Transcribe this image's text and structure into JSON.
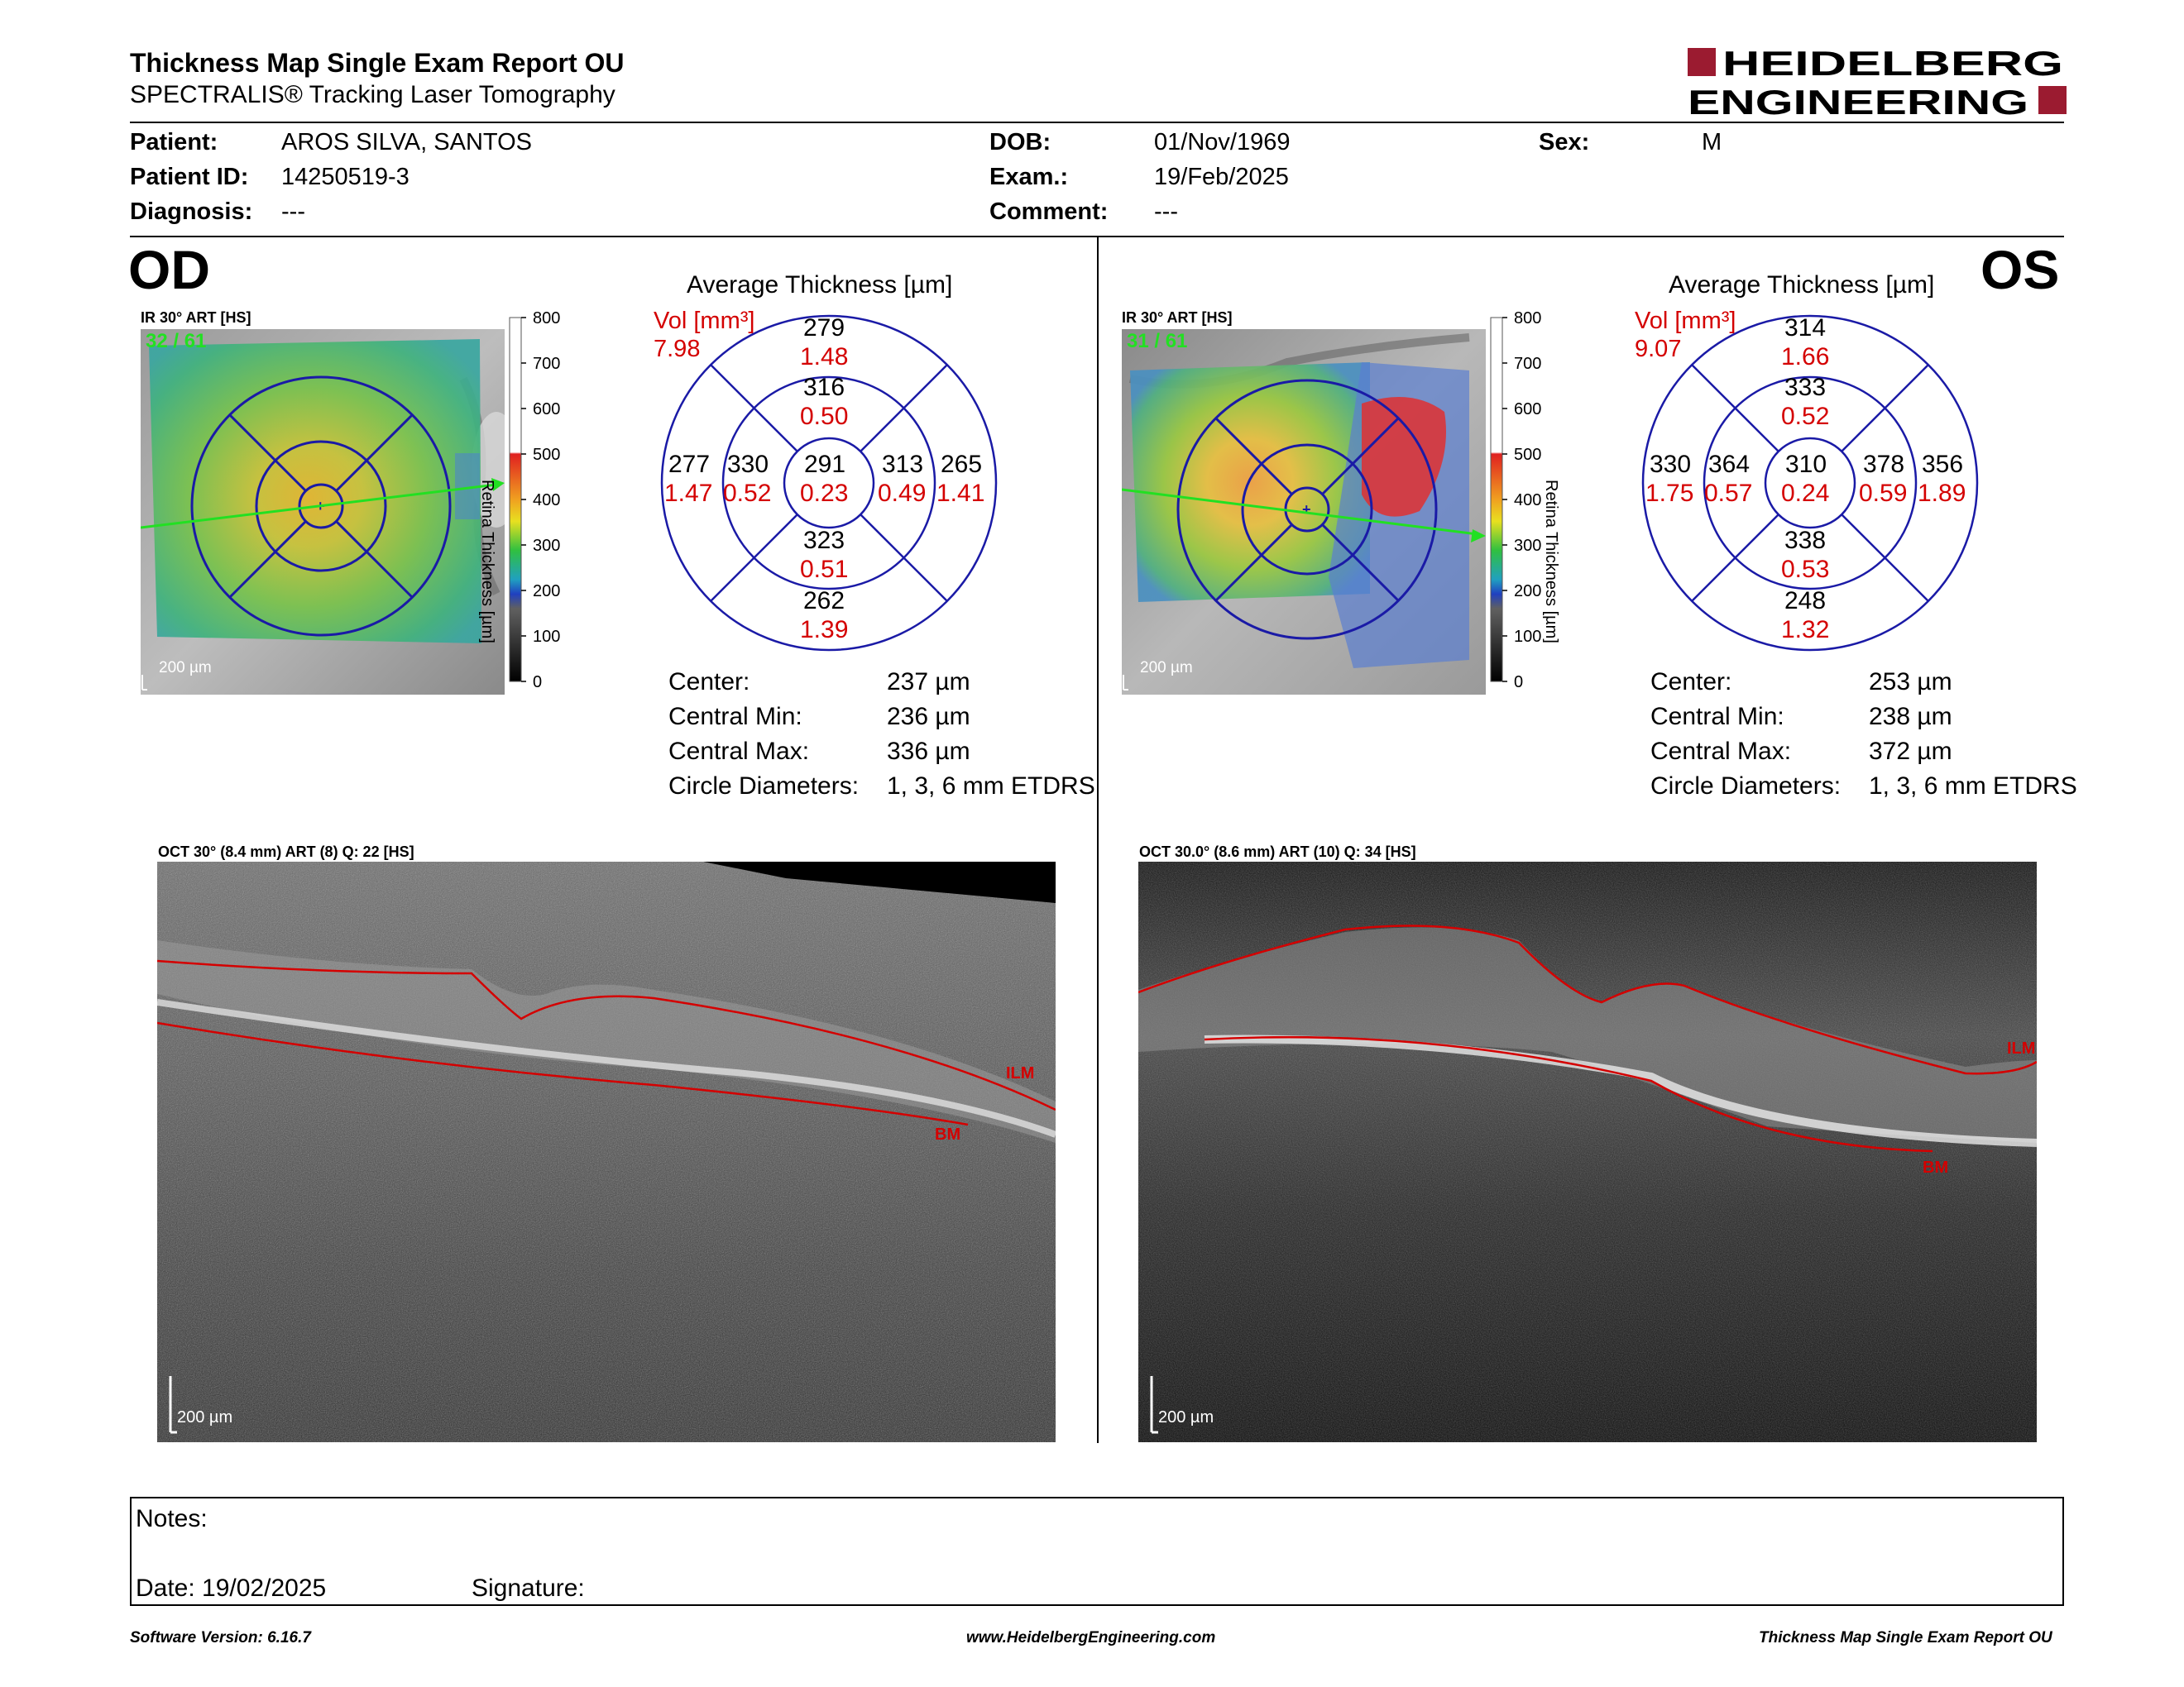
{
  "header": {
    "title": "Thickness Map Single Exam Report OU",
    "subtitle": "SPECTRALIS® Tracking Laser Tomography",
    "logo_line1": "HEIDELBERG",
    "logo_line2": "ENGINEERING",
    "logo_color": "#9b1b30"
  },
  "patient": {
    "patient_label": "Patient:",
    "patient_value": "AROS SILVA, SANTOS",
    "id_label": "Patient ID:",
    "id_value": "14250519-3",
    "diagnosis_label": "Diagnosis:",
    "diagnosis_value": "---",
    "dob_label": "DOB:",
    "dob_value": "01/Nov/1969",
    "exam_label": "Exam.:",
    "exam_value": "19/Feb/2025",
    "comment_label": "Comment:",
    "comment_value": "---",
    "sex_label": "Sex:",
    "sex_value": "M"
  },
  "colorbar": {
    "ticks": [
      "800",
      "700",
      "600",
      "500",
      "400",
      "300",
      "200",
      "100",
      "0"
    ],
    "title": "Retina Thickness [µm]"
  },
  "od": {
    "eye": "OD",
    "fundus_label": "IR 30° ART [HS]",
    "frames": "32 / 61",
    "scale": "200 µm",
    "avg_title": "Average Thickness [µm]",
    "vol_label": "Vol [mm³]",
    "vol_total": "7.98",
    "etdrs": {
      "center": "291",
      "center_vol": "0.23",
      "inner_sup": "316",
      "inner_sup_vol": "0.50",
      "inner_inf": "323",
      "inner_inf_vol": "0.51",
      "inner_left": "330",
      "inner_left_vol": "0.52",
      "inner_right": "313",
      "inner_right_vol": "0.49",
      "outer_sup": "279",
      "outer_sup_vol": "1.48",
      "outer_inf": "262",
      "outer_inf_vol": "1.39",
      "outer_left": "277",
      "outer_left_vol": "1.47",
      "outer_right": "265",
      "outer_right_vol": "1.41"
    },
    "stats": {
      "center_label": "Center:",
      "center_value": "237 µm",
      "min_label": "Central Min:",
      "min_value": "236 µm",
      "max_label": "Central Max:",
      "max_value": "336 µm",
      "diam_label": "Circle Diameters:",
      "diam_value": "1, 3, 6 mm ETDRS"
    },
    "oct_label": "OCT 30° (8.4 mm) ART (8) Q: 22 [HS]",
    "oct_scale": "200 µm",
    "ilm": "ILM",
    "bm": "BM"
  },
  "os": {
    "eye": "OS",
    "fundus_label": "IR 30° ART [HS]",
    "frames": "31 / 61",
    "scale": "200 µm",
    "avg_title": "Average Thickness [µm]",
    "vol_label": "Vol [mm³]",
    "vol_total": "9.07",
    "etdrs": {
      "center": "310",
      "center_vol": "0.24",
      "inner_sup": "333",
      "inner_sup_vol": "0.52",
      "inner_inf": "338",
      "inner_inf_vol": "0.53",
      "inner_left": "364",
      "inner_left_vol": "0.57",
      "inner_right": "378",
      "inner_right_vol": "0.59",
      "outer_sup": "314",
      "outer_sup_vol": "1.66",
      "outer_inf": "248",
      "outer_inf_vol": "1.32",
      "outer_left": "330",
      "outer_left_vol": "1.75",
      "outer_right": "356",
      "outer_right_vol": "1.89"
    },
    "stats": {
      "center_label": "Center:",
      "center_value": "253 µm",
      "min_label": "Central Min:",
      "min_value": "238 µm",
      "max_label": "Central Max:",
      "max_value": "372 µm",
      "diam_label": "Circle Diameters:",
      "diam_value": "1, 3, 6 mm ETDRS"
    },
    "oct_label": "OCT 30.0° (8.6 mm) ART (10) Q: 34 [HS]",
    "oct_scale": "200 µm",
    "ilm": "ILM",
    "bm": "BM"
  },
  "notes": {
    "notes_label": "Notes:",
    "date_label": "Date: 19/02/2025",
    "signature_label": "Signature:"
  },
  "footer": {
    "software": "Software Version: 6.16.7",
    "website": "www.HeidelbergEngineering.com",
    "report": "Thickness Map Single Exam Report OU"
  }
}
